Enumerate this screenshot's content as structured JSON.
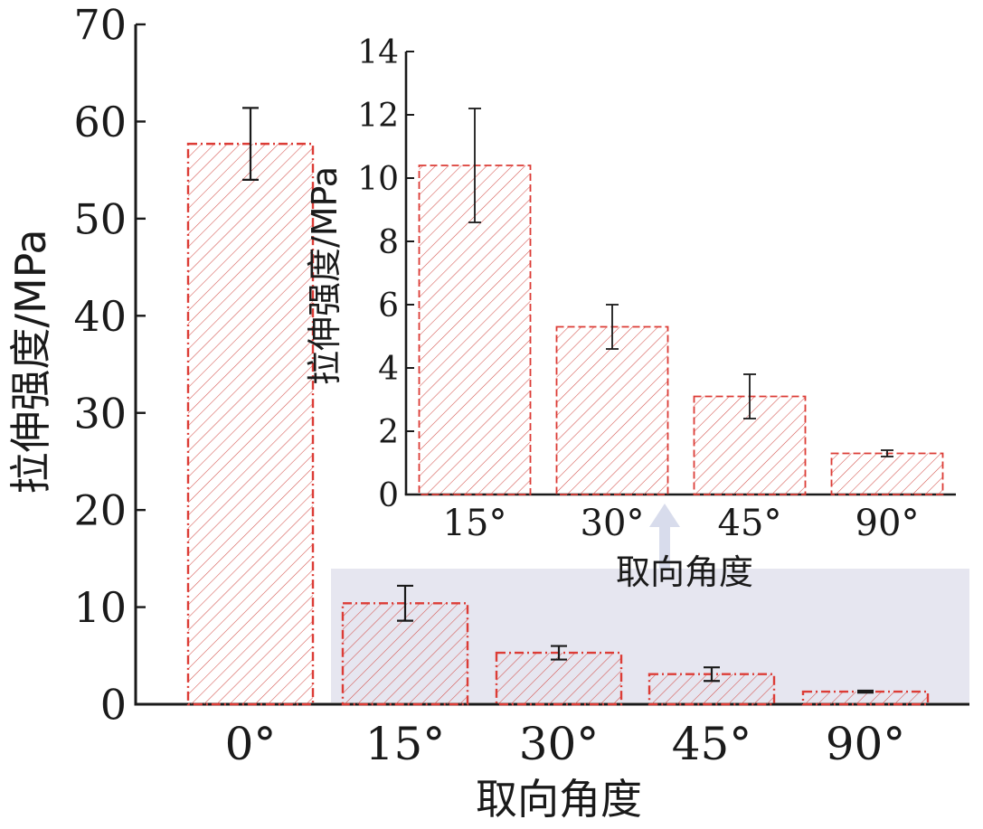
{
  "colors": {
    "bar_edge": "#dc3c36",
    "hatch": "#d4524d",
    "axis": "#1a1a1a",
    "highlight": "#e6e6f0",
    "arrow": "#d8dcec"
  },
  "chart_data": [
    {
      "type": "bar",
      "role": "main",
      "categories": [
        "0°",
        "15°",
        "30°",
        "45°",
        "90°"
      ],
      "values": [
        57.7,
        10.4,
        5.3,
        3.1,
        1.3
      ],
      "errors": [
        3.7,
        1.8,
        0.7,
        0.7,
        0.1
      ],
      "xlabel": "取向角度",
      "ylabel": "拉伸强度/MPa",
      "ylim": [
        0,
        70
      ],
      "yticks": [
        0,
        10,
        20,
        30,
        40,
        50,
        60,
        70
      ],
      "grid": false
    },
    {
      "type": "bar",
      "role": "inset",
      "categories": [
        "15°",
        "30°",
        "45°",
        "90°"
      ],
      "values": [
        10.4,
        5.3,
        3.1,
        1.3
      ],
      "errors": [
        1.8,
        0.7,
        0.7,
        0.1
      ],
      "xlabel": "取向角度",
      "ylabel": "拉伸强度/MPa",
      "ylim": [
        0,
        14
      ],
      "yticks": [
        0,
        2,
        4,
        6,
        8,
        10,
        12,
        14
      ],
      "grid": false
    }
  ]
}
